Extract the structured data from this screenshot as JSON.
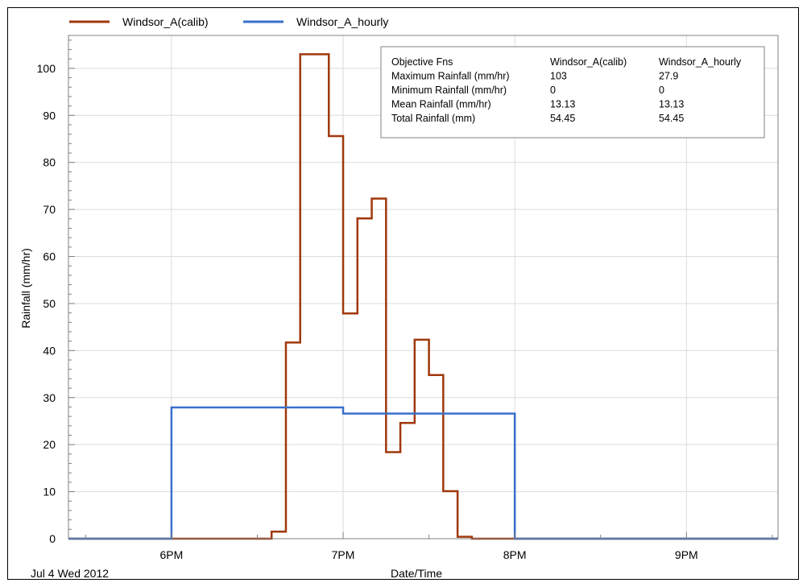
{
  "chart_data": {
    "type": "line",
    "step": true,
    "xlabel": "Date/Time",
    "ylabel": "Rainfall (mm/hr)",
    "date_label": "Jul 4 Wed 2012",
    "x_range": [
      "17:24",
      "21:32"
    ],
    "ylim": [
      0,
      107
    ],
    "y_ticks": [
      0,
      10,
      20,
      30,
      40,
      50,
      60,
      70,
      80,
      90,
      100
    ],
    "x_ticks": [
      {
        "time": "18:00",
        "label": "6PM"
      },
      {
        "time": "19:00",
        "label": "7PM"
      },
      {
        "time": "20:00",
        "label": "8PM"
      },
      {
        "time": "21:00",
        "label": "9PM"
      }
    ],
    "grid": true,
    "legend_position": "top",
    "series": [
      {
        "name": "Windsor_A(calib)",
        "color": "#a0380b",
        "points": [
          {
            "t": "17:24",
            "v": 0
          },
          {
            "t": "18:35",
            "v": 1.5
          },
          {
            "t": "18:40",
            "v": 41.7
          },
          {
            "t": "18:45",
            "v": 103
          },
          {
            "t": "18:55",
            "v": 85.6
          },
          {
            "t": "19:00",
            "v": 47.9
          },
          {
            "t": "19:05",
            "v": 68.1
          },
          {
            "t": "19:10",
            "v": 72.3
          },
          {
            "t": "19:15",
            "v": 18.4
          },
          {
            "t": "19:20",
            "v": 24.6
          },
          {
            "t": "19:25",
            "v": 42.3
          },
          {
            "t": "19:30",
            "v": 34.8
          },
          {
            "t": "19:35",
            "v": 10.1
          },
          {
            "t": "19:40",
            "v": 0.4
          },
          {
            "t": "19:45",
            "v": 0
          },
          {
            "t": "21:32",
            "v": 0
          }
        ]
      },
      {
        "name": "Windsor_A_hourly",
        "color": "#3a6fcb",
        "points": [
          {
            "t": "17:24",
            "v": 0
          },
          {
            "t": "18:00",
            "v": 27.9
          },
          {
            "t": "19:00",
            "v": 26.6
          },
          {
            "t": "20:00",
            "v": 0
          },
          {
            "t": "21:32",
            "v": 0
          }
        ]
      }
    ]
  },
  "stats_table": {
    "headers": [
      "Objective Fns",
      "Windsor_A(calib)",
      "Windsor_A_hourly"
    ],
    "rows": [
      [
        "Maximum Rainfall (mm/hr)",
        "103",
        "27.9"
      ],
      [
        "Minimum Rainfall (mm/hr)",
        "0",
        "0"
      ],
      [
        "Mean Rainfall (mm/hr)",
        "13.13",
        "13.13"
      ],
      [
        "Total Rainfall (mm)",
        "54.45",
        "54.45"
      ]
    ]
  }
}
